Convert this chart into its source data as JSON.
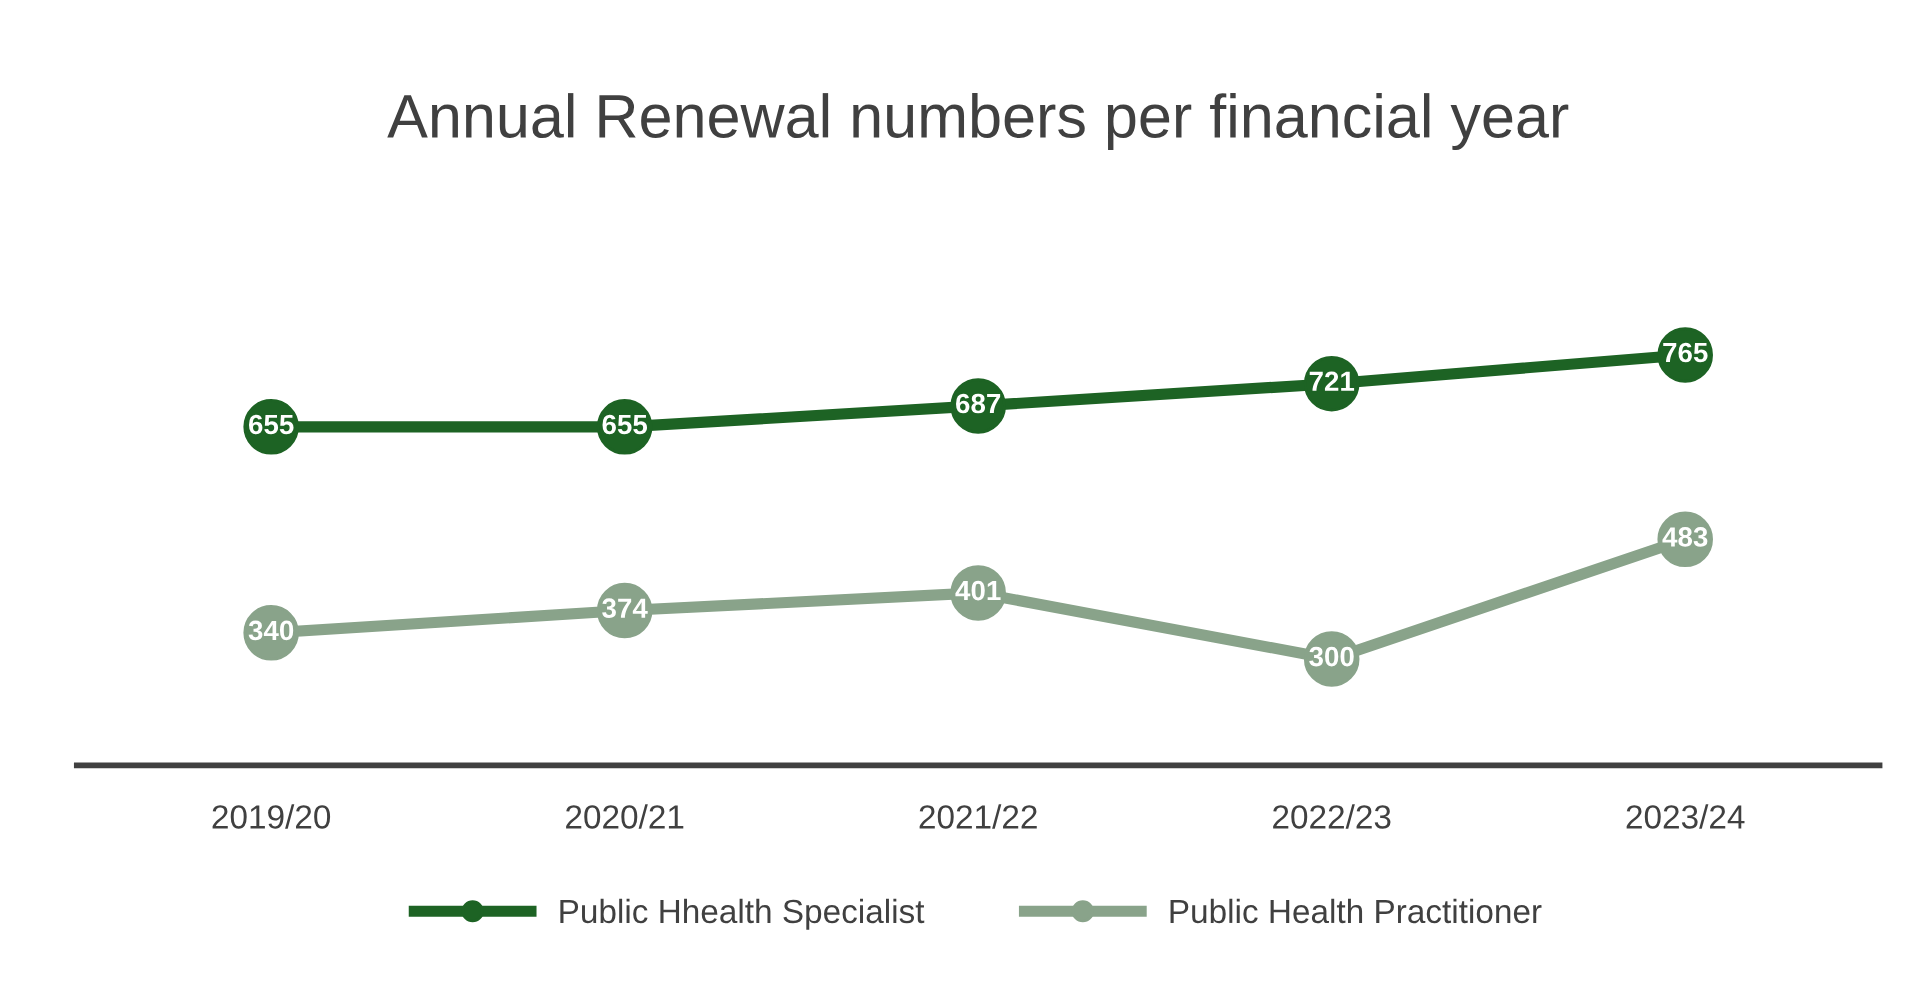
{
  "chart_data": {
    "type": "line",
    "title": "Annual Renewal numbers per financial year",
    "categories": [
      "2019/20",
      "2020/21",
      "2021/22",
      "2022/23",
      "2023/24"
    ],
    "series": [
      {
        "name": "Public Hhealth Specialist",
        "color": "#1d6324",
        "values": [
          655,
          655,
          687,
          721,
          765
        ]
      },
      {
        "name": "Public Health Practitioner",
        "color": "#89a38a",
        "values": [
          340,
          374,
          401,
          300,
          483
        ]
      }
    ],
    "data_labels": true,
    "marker": "circle",
    "line_style": "solid",
    "legend": "bottom",
    "grid": false,
    "tick_labels": "x"
  }
}
